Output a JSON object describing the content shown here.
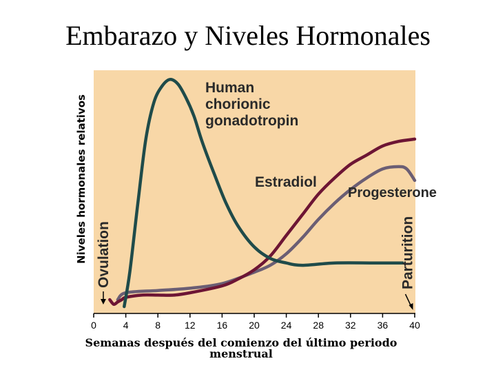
{
  "title": "Embarazo y Niveles Hormonales",
  "colors": {
    "plot_background": "#f8d7a7",
    "hcg": "#1f4b4a",
    "estradiol": "#6d1534",
    "progesterone": "#6b5e74",
    "arrow": "#000000"
  },
  "chart_data": {
    "type": "line",
    "title": "Embarazo y Niveles Hormonales",
    "xlabel": "Semanas después del comienzo del último periodo menstrual",
    "ylabel": "Niveles hormonales relativos",
    "xlim": [
      0,
      40
    ],
    "ylim": [
      0,
      100
    ],
    "xticks": [
      0,
      4,
      8,
      12,
      16,
      20,
      24,
      28,
      32,
      36,
      40
    ],
    "grid": false,
    "series": [
      {
        "name": "Human chorionic gonadotropin",
        "x": [
          3.8,
          4.5,
          5.5,
          6.5,
          7.5,
          8.5,
          9.5,
          10.5,
          11.5,
          12.5,
          13.5,
          15,
          16.5,
          18,
          20,
          22,
          24,
          26,
          30,
          35,
          38.5
        ],
        "y": [
          0,
          15,
          45,
          73,
          89,
          96,
          99,
          97,
          91,
          83,
          72,
          58,
          45,
          35,
          26,
          21,
          19,
          18,
          19,
          19,
          19
        ]
      },
      {
        "name": "Estradiol",
        "x": [
          2,
          2.5,
          3,
          3.5,
          4,
          6,
          8,
          10,
          12,
          16,
          18,
          20,
          22,
          24,
          26,
          28,
          30,
          32,
          34,
          36,
          38,
          40
        ],
        "y": [
          3,
          1,
          2,
          3,
          4,
          5,
          5,
          5,
          6,
          9,
          12,
          16,
          22,
          31,
          40,
          49,
          56,
          62,
          66,
          70,
          72,
          73
        ]
      },
      {
        "name": "Progesterone",
        "x": [
          3,
          4,
          8,
          12,
          16,
          20,
          22,
          24,
          26,
          28,
          30,
          32,
          34,
          36,
          38,
          39,
          40
        ],
        "y": [
          3,
          6,
          7,
          8,
          10,
          15,
          18,
          23,
          30,
          38,
          45,
          51,
          56,
          60,
          61,
          60,
          55
        ]
      }
    ],
    "annotations": {
      "hcg_label": [
        "Human",
        "chorionic",
        "gonadotropin"
      ],
      "estradiol_label": "Estradiol",
      "progesterone_label": "Progesterone",
      "ovulation": {
        "text": "Ovulation",
        "week": 1.2
      },
      "parturition": {
        "text": "Parturition",
        "week": 39.7
      }
    }
  }
}
